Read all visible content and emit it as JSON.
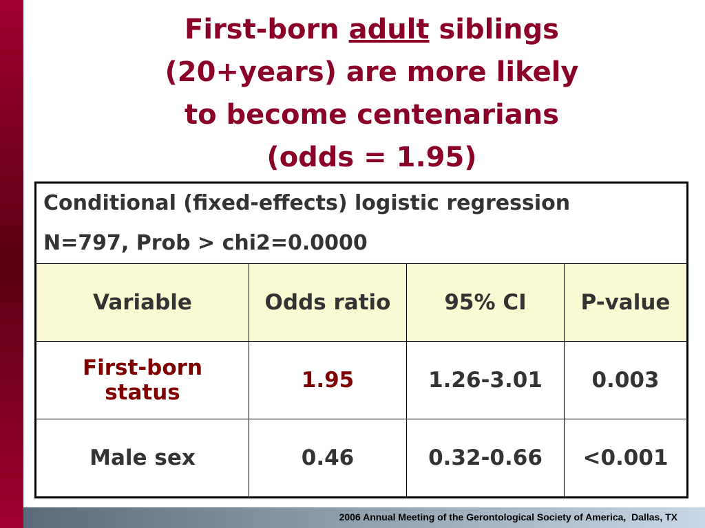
{
  "title": {
    "before": "First-born",
    "underlined": "adult",
    "after": "siblings",
    "lines": [
      "(20+years) are more likely",
      "to become centenarians",
      "(odds = 1.95)"
    ]
  },
  "table": {
    "caption": [
      "Conditional (fixed-effects) logistic regression",
      "N=797, Prob > chi2=0.0000"
    ],
    "header": [
      "Variable",
      "Odds ratio",
      "95% CI",
      "P-value"
    ],
    "rows": [
      [
        "First-born status",
        "1.95",
        "1.26-3.01",
        "0.003"
      ],
      [
        "Male sex",
        "0.46",
        "0.32-0.66",
        "<0.001"
      ]
    ]
  },
  "footer": "2006 Annual Meeting of the Gerontological Society of America,  Dallas, TX"
}
